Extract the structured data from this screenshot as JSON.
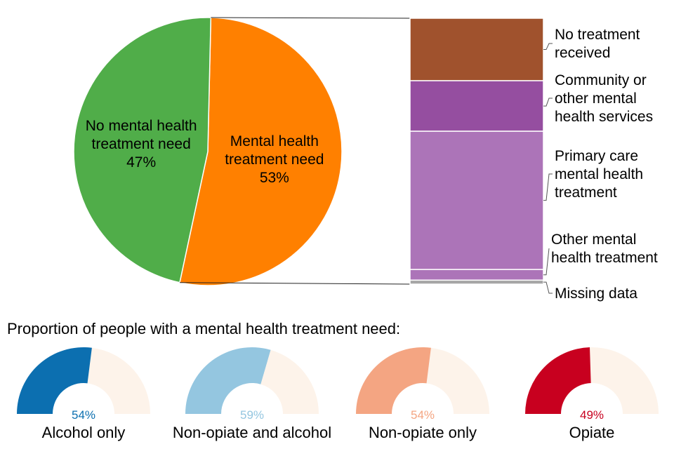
{
  "chart_data": [
    {
      "type": "pie",
      "slices": [
        {
          "label": [
            "No mental health",
            "treatment need"
          ],
          "value": 47,
          "value_label": "47%",
          "color": "#50ad49"
        },
        {
          "label": [
            "Mental health",
            "treatment need"
          ],
          "value": 53,
          "value_label": "53%",
          "color": "#ff8000"
        }
      ]
    },
    {
      "type": "bar",
      "stacked": true,
      "segments": [
        {
          "label": [
            "No treatment",
            "received"
          ],
          "value": 23.5,
          "color": "#a0522d"
        },
        {
          "label": [
            "Community or",
            "other mental",
            "health services"
          ],
          "value": 19,
          "color": "#954ea0"
        },
        {
          "label": [
            "Primary care",
            "mental health",
            "treatment"
          ],
          "value": 52,
          "color": "#ac74b8"
        },
        {
          "label": [
            "Other mental",
            "health treatment"
          ],
          "value": 4,
          "color": "#ac74b8"
        },
        {
          "label": [
            "Missing data"
          ],
          "value": 1.5,
          "color": "#a6a6a6"
        }
      ]
    },
    {
      "type": "gauge",
      "title": "Proportion of people with a mental health treatment need:",
      "track_color": "#fdf3ea",
      "gauges": [
        {
          "label": "Alcohol only",
          "value": 54,
          "value_label": "54%",
          "color": "#0c6fb0"
        },
        {
          "label": "Non-opiate and alcohol",
          "value": 59,
          "value_label": "59%",
          "color": "#94c6e0"
        },
        {
          "label": "Non-opiate only",
          "value": 54,
          "value_label": "54%",
          "color": "#f4a582"
        },
        {
          "label": "Opiate",
          "value": 49,
          "value_label": "49%",
          "color": "#c8001f"
        }
      ]
    }
  ]
}
